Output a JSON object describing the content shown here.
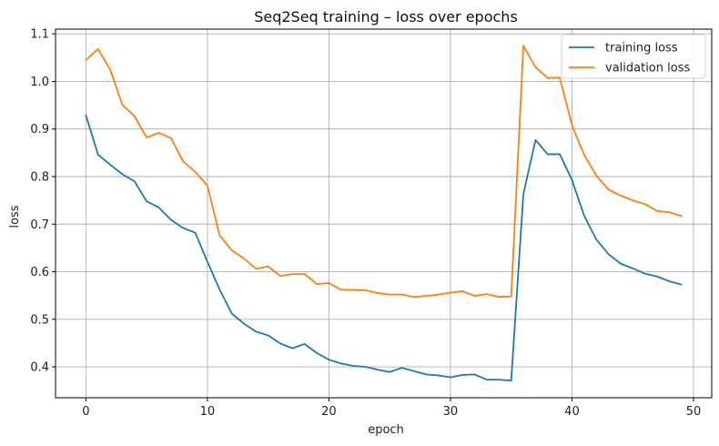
{
  "chart_data": {
    "type": "line",
    "title": "Seq2Seq training – loss over epochs",
    "xlabel": "epoch",
    "ylabel": "loss",
    "xlim": [
      -2.5,
      51.5
    ],
    "ylim": [
      0.335,
      1.11
    ],
    "xticks": [
      0,
      10,
      20,
      30,
      40,
      50
    ],
    "yticks": [
      0.4,
      0.5,
      0.6,
      0.7,
      0.8,
      0.9,
      1.0,
      1.1
    ],
    "ytick_labels": [
      "0.4",
      "0.5",
      "0.6",
      "0.7",
      "0.8",
      "0.9",
      "1.0",
      "1.1"
    ],
    "grid": true,
    "legend_position": "top-right",
    "x": [
      0,
      1,
      2,
      3,
      4,
      5,
      6,
      7,
      8,
      9,
      10,
      11,
      12,
      13,
      14,
      15,
      16,
      17,
      18,
      19,
      20,
      21,
      22,
      23,
      24,
      25,
      26,
      27,
      28,
      29,
      30,
      31,
      32,
      33,
      34,
      35,
      36,
      37,
      38,
      39,
      40,
      41,
      42,
      43,
      44,
      45,
      46,
      47,
      48,
      49
    ],
    "series": [
      {
        "name": "training loss",
        "color": "#1f77b4",
        "values": [
          0.929,
          0.846,
          0.825,
          0.805,
          0.79,
          0.748,
          0.735,
          0.709,
          0.692,
          0.682,
          0.621,
          0.563,
          0.512,
          0.491,
          0.474,
          0.466,
          0.449,
          0.439,
          0.448,
          0.429,
          0.415,
          0.407,
          0.402,
          0.4,
          0.394,
          0.389,
          0.398,
          0.391,
          0.384,
          0.382,
          0.378,
          0.383,
          0.384,
          0.373,
          0.373,
          0.371,
          0.763,
          0.877,
          0.847,
          0.847,
          0.793,
          0.718,
          0.668,
          0.637,
          0.617,
          0.607,
          0.596,
          0.59,
          0.58,
          0.573
        ]
      },
      {
        "name": "validation loss",
        "color": "#ff7f0e",
        "values": [
          1.045,
          1.068,
          1.025,
          0.951,
          0.927,
          0.882,
          0.892,
          0.881,
          0.832,
          0.81,
          0.781,
          0.677,
          0.645,
          0.628,
          0.606,
          0.611,
          0.591,
          0.595,
          0.595,
          0.574,
          0.576,
          0.562,
          0.562,
          0.561,
          0.555,
          0.552,
          0.552,
          0.547,
          0.549,
          0.552,
          0.556,
          0.559,
          0.549,
          0.553,
          0.547,
          0.548,
          1.075,
          1.03,
          1.007,
          1.008,
          0.908,
          0.846,
          0.802,
          0.773,
          0.76,
          0.75,
          0.742,
          0.728,
          0.725,
          0.717
        ]
      }
    ]
  }
}
